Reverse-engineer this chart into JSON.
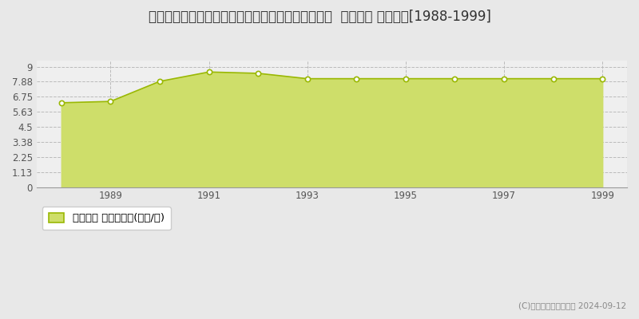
{
  "title": "奈良県高市郡高取町大字藤井字アサゴ５１７番１外  地価公示 地価推移[1988-1999]",
  "years": [
    1988,
    1989,
    1990,
    1991,
    1992,
    1993,
    1994,
    1995,
    1996,
    1997,
    1998,
    1999
  ],
  "values": [
    6.3,
    6.4,
    7.9,
    8.6,
    8.5,
    8.1,
    8.1,
    8.1,
    8.1,
    8.1,
    8.1,
    8.1
  ],
  "yticks": [
    0,
    1.13,
    2.25,
    3.38,
    4.5,
    5.63,
    6.75,
    7.88,
    9
  ],
  "ytick_labels": [
    "0",
    "1.13",
    "2.25",
    "3.38",
    "4.5",
    "5.63",
    "6.75",
    "7.88",
    "9"
  ],
  "xtick_years": [
    1989,
    1991,
    1993,
    1995,
    1997,
    1999
  ],
  "ylim": [
    0,
    9.45
  ],
  "line_color": "#9ab804",
  "fill_color": "#cede6a",
  "marker_face": "#ffffff",
  "marker_edge": "#9ab804",
  "background_color": "#e8e8e8",
  "plot_bg_color": "#efefef",
  "grid_color": "#bbbbbb",
  "legend_label": "地価公示 平均坪単価(万円/坪)",
  "copyright_text": "(C)土地価格ドットコム 2024-09-12",
  "title_fontsize": 12,
  "tick_fontsize": 8.5,
  "legend_fontsize": 9.5
}
